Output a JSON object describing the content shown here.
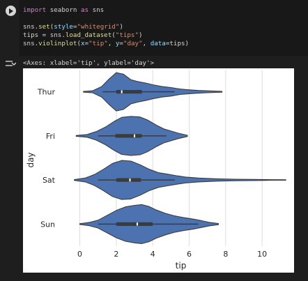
{
  "code_cell": {
    "lines": [
      [
        {
          "t": "import",
          "c": "kw"
        },
        {
          "t": " seaborn ",
          "c": ""
        },
        {
          "t": "as",
          "c": "kw"
        },
        {
          "t": " sns",
          "c": ""
        }
      ],
      [],
      [
        {
          "t": "sns.",
          "c": ""
        },
        {
          "t": "set",
          "c": "fn"
        },
        {
          "t": "(",
          "c": ""
        },
        {
          "t": "style",
          "c": "prm"
        },
        {
          "t": "=",
          "c": ""
        },
        {
          "t": "\"whitegrid\"",
          "c": "str"
        },
        {
          "t": ")",
          "c": ""
        }
      ],
      [
        {
          "t": "tips = sns.",
          "c": ""
        },
        {
          "t": "load_dataset",
          "c": "fn"
        },
        {
          "t": "(",
          "c": ""
        },
        {
          "t": "\"tips\"",
          "c": "str"
        },
        {
          "t": ")",
          "c": ""
        }
      ],
      [
        {
          "t": "sns.",
          "c": ""
        },
        {
          "t": "violinplot",
          "c": "fn"
        },
        {
          "t": "(",
          "c": ""
        },
        {
          "t": "x",
          "c": "prm"
        },
        {
          "t": "=",
          "c": ""
        },
        {
          "t": "\"tip\"",
          "c": "str"
        },
        {
          "t": ", ",
          "c": ""
        },
        {
          "t": "y",
          "c": "prm"
        },
        {
          "t": "=",
          "c": ""
        },
        {
          "t": "\"day\"",
          "c": "str"
        },
        {
          "t": ", ",
          "c": ""
        },
        {
          "t": "data",
          "c": "prm"
        },
        {
          "t": "=tips)",
          "c": ""
        }
      ]
    ]
  },
  "output": {
    "text": "<Axes: xlabel='tip', ylabel='day'>"
  },
  "icons": {
    "run": "play-circle-icon",
    "output_toggle": "output-toggle-icon"
  },
  "colors": {
    "violin_fill": "#4c72b0",
    "violin_edge": "#3b3b3b",
    "box": "#3b3b3b",
    "median": "#ffffff",
    "grid": "#dddddd"
  },
  "chart_data": {
    "type": "violin",
    "orientation": "horizontal",
    "xlabel": "tip",
    "ylabel": "day",
    "xlim": [
      -0.9,
      11.6
    ],
    "xticks": [
      0,
      2,
      4,
      6,
      8,
      10
    ],
    "grid": "vertical",
    "categories": [
      "Thur",
      "Fri",
      "Sat",
      "Sun"
    ],
    "series": [
      {
        "category": "Thur",
        "min": 0.2,
        "max": 7.8,
        "whisker": [
          1.25,
          5.2
        ],
        "q1": 2.0,
        "median": 2.3,
        "q3": 3.4,
        "density": [
          [
            0.2,
            0.02
          ],
          [
            0.7,
            0.05
          ],
          [
            1.2,
            0.27
          ],
          [
            1.6,
            0.65
          ],
          [
            2.0,
            0.98
          ],
          [
            2.4,
            0.9
          ],
          [
            2.8,
            0.62
          ],
          [
            3.2,
            0.52
          ],
          [
            3.6,
            0.45
          ],
          [
            4.0,
            0.36
          ],
          [
            4.5,
            0.27
          ],
          [
            5.0,
            0.22
          ],
          [
            5.5,
            0.14
          ],
          [
            6.0,
            0.1
          ],
          [
            6.5,
            0.07
          ],
          [
            7.0,
            0.05
          ],
          [
            7.8,
            0.02
          ]
        ]
      },
      {
        "category": "Fri",
        "min": -0.2,
        "max": 5.9,
        "whisker": [
          1.0,
          4.75
        ],
        "q1": 1.95,
        "median": 3.0,
        "q3": 3.4,
        "density": [
          [
            -0.2,
            0.02
          ],
          [
            0.4,
            0.07
          ],
          [
            0.9,
            0.22
          ],
          [
            1.4,
            0.45
          ],
          [
            1.9,
            0.75
          ],
          [
            2.3,
            0.95
          ],
          [
            2.8,
            1.0
          ],
          [
            3.3,
            0.97
          ],
          [
            3.7,
            0.82
          ],
          [
            4.2,
            0.55
          ],
          [
            4.6,
            0.36
          ],
          [
            5.0,
            0.25
          ],
          [
            5.4,
            0.14
          ],
          [
            5.9,
            0.03
          ]
        ]
      },
      {
        "category": "Sat",
        "min": -0.3,
        "max": 11.3,
        "whisker": [
          1.0,
          5.2
        ],
        "q1": 2.0,
        "median": 2.75,
        "q3": 3.35,
        "density": [
          [
            -0.3,
            0.02
          ],
          [
            0.3,
            0.1
          ],
          [
            0.8,
            0.28
          ],
          [
            1.3,
            0.55
          ],
          [
            1.8,
            0.85
          ],
          [
            2.3,
            1.0
          ],
          [
            2.8,
            0.97
          ],
          [
            3.3,
            0.78
          ],
          [
            3.8,
            0.55
          ],
          [
            4.3,
            0.38
          ],
          [
            4.8,
            0.3
          ],
          [
            5.3,
            0.22
          ],
          [
            5.8,
            0.15
          ],
          [
            6.5,
            0.1
          ],
          [
            7.5,
            0.06
          ],
          [
            8.5,
            0.04
          ],
          [
            9.5,
            0.03
          ],
          [
            10.5,
            0.015
          ],
          [
            11.3,
            0.01
          ]
        ]
      },
      {
        "category": "Sun",
        "min": 0.0,
        "max": 7.6,
        "whisker": [
          1.0,
          6.5
        ],
        "q1": 2.0,
        "median": 3.15,
        "q3": 4.0,
        "density": [
          [
            0.0,
            0.02
          ],
          [
            0.5,
            0.08
          ],
          [
            1.0,
            0.2
          ],
          [
            1.5,
            0.45
          ],
          [
            2.0,
            0.7
          ],
          [
            2.5,
            0.88
          ],
          [
            3.0,
            0.96
          ],
          [
            3.4,
            1.0
          ],
          [
            3.8,
            0.9
          ],
          [
            4.2,
            0.72
          ],
          [
            4.7,
            0.55
          ],
          [
            5.2,
            0.42
          ],
          [
            5.7,
            0.33
          ],
          [
            6.2,
            0.26
          ],
          [
            6.7,
            0.17
          ],
          [
            7.1,
            0.09
          ],
          [
            7.6,
            0.03
          ]
        ]
      }
    ]
  }
}
